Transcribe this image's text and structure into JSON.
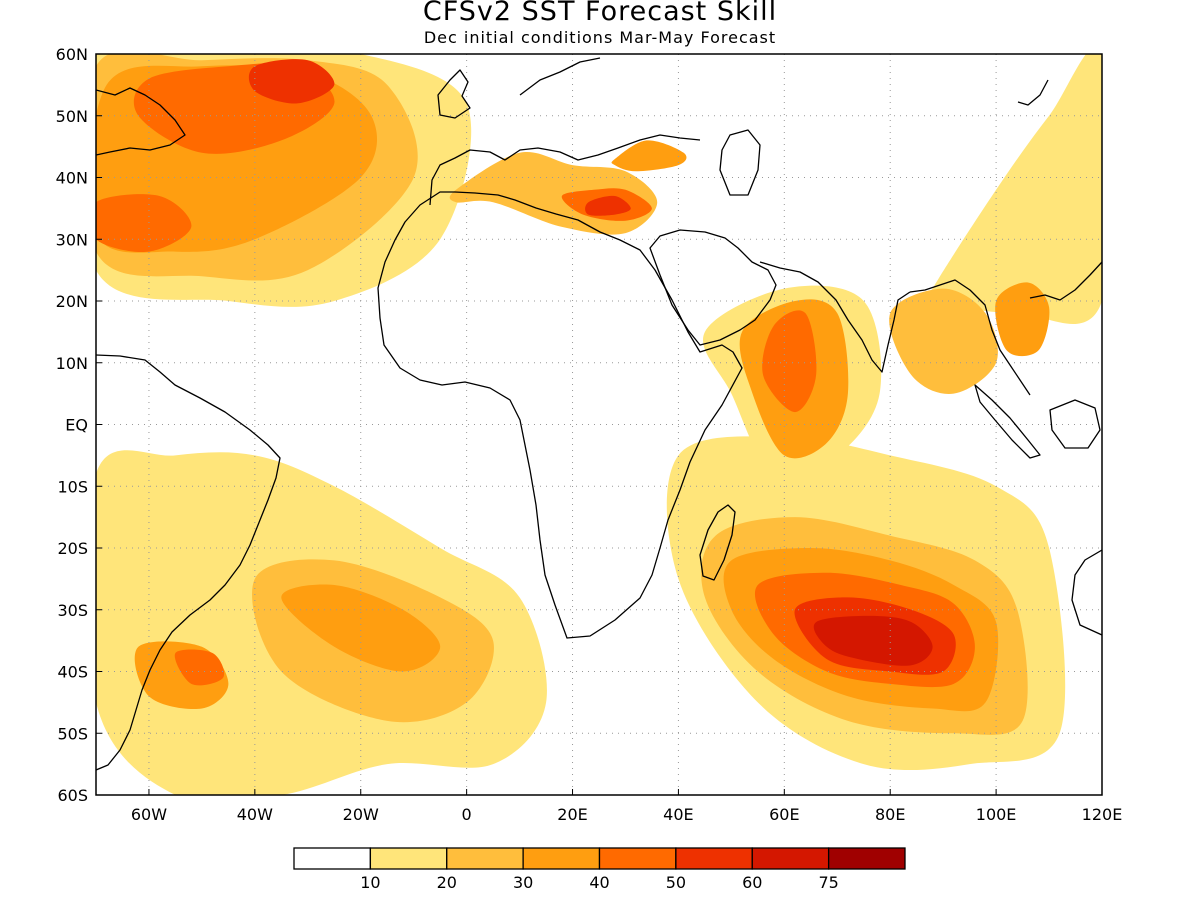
{
  "title": "CFSv2 SST Forecast Skill",
  "subtitle": "Dec initial conditions  Mar-May Forecast",
  "map": {
    "lon_range": [
      -70,
      120
    ],
    "lat_range": [
      -60,
      60
    ],
    "lat_ticks": [
      {
        "value": 60,
        "label": "60N"
      },
      {
        "value": 50,
        "label": "50N"
      },
      {
        "value": 40,
        "label": "40N"
      },
      {
        "value": 30,
        "label": "30N"
      },
      {
        "value": 20,
        "label": "20N"
      },
      {
        "value": 10,
        "label": "10N"
      },
      {
        "value": 0,
        "label": "EQ"
      },
      {
        "value": -10,
        "label": "10S"
      },
      {
        "value": -20,
        "label": "20S"
      },
      {
        "value": -30,
        "label": "30S"
      },
      {
        "value": -40,
        "label": "40S"
      },
      {
        "value": -50,
        "label": "50S"
      },
      {
        "value": -60,
        "label": "60S"
      }
    ],
    "lon_ticks": [
      {
        "value": -60,
        "label": "60W"
      },
      {
        "value": -40,
        "label": "40W"
      },
      {
        "value": -20,
        "label": "20W"
      },
      {
        "value": 0,
        "label": "0"
      },
      {
        "value": 20,
        "label": "20E"
      },
      {
        "value": 40,
        "label": "40E"
      },
      {
        "value": 60,
        "label": "60E"
      },
      {
        "value": 80,
        "label": "80E"
      },
      {
        "value": 100,
        "label": "100E"
      },
      {
        "value": 120,
        "label": "120E"
      }
    ],
    "grid": true,
    "grid_style": "dotted"
  },
  "colorbar": {
    "colors": [
      "#ffffff",
      "#ffe57a",
      "#ffbe3c",
      "#ff9e10",
      "#ff6a00",
      "#ee3100",
      "#d41700",
      "#a00000"
    ],
    "labels": [
      "10",
      "20",
      "30",
      "40",
      "50",
      "60",
      "75"
    ]
  },
  "skill_regions": [
    {
      "name": "north-atlantic",
      "level": 1,
      "lon": [
        -70,
        -40,
        -20,
        0,
        -5,
        -25,
        -45,
        -70
      ],
      "lat": [
        60,
        60,
        60,
        52,
        30,
        20,
        20,
        25
      ]
    },
    {
      "name": "north-atlantic",
      "level": 2,
      "lon": [
        -70,
        -50,
        -30,
        -15,
        -10,
        -30,
        -50,
        -70
      ],
      "lat": [
        58,
        59,
        59,
        55,
        40,
        25,
        24,
        28
      ]
    },
    {
      "name": "north-atlantic",
      "level": 3,
      "lon": [
        -68,
        -50,
        -30,
        -18,
        -20,
        -40,
        -55,
        -70
      ],
      "lat": [
        55,
        58,
        57,
        50,
        40,
        30,
        28,
        31
      ]
    },
    {
      "name": "north-atlantic",
      "level": 4,
      "lon": [
        -60,
        -45,
        -32,
        -25,
        -35,
        -50,
        -62
      ],
      "lat": [
        56,
        58,
        58,
        52,
        46,
        44,
        50
      ]
    },
    {
      "name": "north-atlantic",
      "level": 5,
      "lon": [
        -40,
        -30,
        -25,
        -32,
        -40
      ],
      "lat": [
        58,
        59,
        55,
        52,
        54
      ]
    },
    {
      "name": "north-atlantic-west",
      "level": 4,
      "lon": [
        -70,
        -58,
        -52,
        -60,
        -70
      ],
      "lat": [
        36,
        37,
        32,
        28,
        30
      ]
    },
    {
      "name": "mediterranean",
      "level": 2,
      "lon": [
        -2,
        10,
        20,
        30,
        36,
        30,
        18,
        5,
        -2
      ],
      "lat": [
        38,
        44,
        42,
        41,
        36,
        31,
        32,
        36,
        36
      ]
    },
    {
      "name": "mediterranean",
      "level": 4,
      "lon": [
        18,
        24,
        30,
        35,
        30,
        22
      ],
      "lat": [
        37,
        38,
        38,
        35,
        33,
        34
      ]
    },
    {
      "name": "mediterranean",
      "level": 5,
      "lon": [
        23,
        28,
        31,
        28,
        23
      ],
      "lat": [
        36,
        37,
        35,
        34,
        34
      ]
    },
    {
      "name": "black-sea",
      "level": 3,
      "lon": [
        28,
        34,
        41,
        40,
        32,
        28
      ],
      "lat": [
        43,
        46,
        44,
        42,
        41,
        42
      ]
    },
    {
      "name": "west-pacific",
      "level": 1,
      "lon": [
        88,
        100,
        110,
        120,
        120,
        104,
        88
      ],
      "lat": [
        22,
        38,
        50,
        60,
        20,
        18,
        20
      ]
    },
    {
      "name": "arabian-sea",
      "level": 1,
      "lon": [
        45,
        60,
        75,
        78,
        70,
        58,
        50
      ],
      "lat": [
        15,
        22,
        20,
        5,
        -5,
        -8,
        5
      ]
    },
    {
      "name": "arabian-sea",
      "level": 3,
      "lon": [
        52,
        62,
        70,
        72,
        68,
        60,
        54
      ],
      "lat": [
        15,
        20,
        18,
        5,
        -3,
        -5,
        5
      ]
    },
    {
      "name": "arabian-sea",
      "level": 4,
      "lon": [
        58,
        64,
        66,
        62,
        56
      ],
      "lat": [
        16,
        18,
        8,
        2,
        8
      ]
    },
    {
      "name": "bay-of-bengal",
      "level": 2,
      "lon": [
        80,
        90,
        98,
        100,
        92,
        84
      ],
      "lat": [
        18,
        22,
        18,
        10,
        5,
        8
      ]
    },
    {
      "name": "south-china-sea",
      "level": 3,
      "lon": [
        100,
        106,
        110,
        108,
        102
      ],
      "lat": [
        20,
        23,
        19,
        12,
        12
      ]
    },
    {
      "name": "south-indian",
      "level": 1,
      "lon": [
        40,
        60,
        80,
        100,
        110,
        112,
        95,
        75,
        55,
        40
      ],
      "lat": [
        -5,
        -2,
        -5,
        -10,
        -20,
        -50,
        -55,
        -55,
        -45,
        -25
      ]
    },
    {
      "name": "south-indian",
      "level": 2,
      "lon": [
        47,
        62,
        80,
        96,
        104,
        105,
        92,
        72,
        55,
        45
      ],
      "lat": [
        -18,
        -15,
        -18,
        -22,
        -30,
        -48,
        -50,
        -48,
        -40,
        -28
      ]
    },
    {
      "name": "south-indian",
      "level": 3,
      "lon": [
        50,
        65,
        80,
        92,
        100,
        98,
        88,
        72,
        58,
        50
      ],
      "lat": [
        -22,
        -20,
        -22,
        -26,
        -32,
        -45,
        -46,
        -44,
        -38,
        -30
      ]
    },
    {
      "name": "south-indian",
      "level": 4,
      "lon": [
        55,
        68,
        82,
        92,
        96,
        92,
        80,
        68,
        58
      ],
      "lat": [
        -26,
        -24,
        -26,
        -29,
        -36,
        -42,
        -42,
        -40,
        -34
      ]
    },
    {
      "name": "south-indian",
      "level": 5,
      "lon": [
        62,
        72,
        84,
        92,
        90,
        80,
        68
      ],
      "lat": [
        -30,
        -28,
        -30,
        -34,
        -40,
        -40,
        -38
      ]
    },
    {
      "name": "south-indian",
      "level": 6,
      "lon": [
        66,
        76,
        84,
        88,
        84,
        74,
        68
      ],
      "lat": [
        -32,
        -31,
        -32,
        -36,
        -39,
        -38,
        -36
      ]
    },
    {
      "name": "south-atlantic",
      "level": 1,
      "lon": [
        -70,
        -55,
        -40,
        -25,
        -5,
        10,
        15,
        5,
        -15,
        -35,
        -55,
        -70
      ],
      "lat": [
        -8,
        -5,
        -5,
        -10,
        -20,
        -28,
        -45,
        -55,
        -55,
        -60,
        -60,
        -45
      ]
    },
    {
      "name": "south-atlantic",
      "level": 2,
      "lon": [
        -40,
        -25,
        -5,
        5,
        0,
        -15,
        -35
      ],
      "lat": [
        -25,
        -22,
        -28,
        -35,
        -45,
        -48,
        -40
      ]
    },
    {
      "name": "south-atlantic",
      "level": 3,
      "lon": [
        -35,
        -25,
        -12,
        -5,
        -12,
        -25
      ],
      "lat": [
        -28,
        -26,
        -30,
        -36,
        -40,
        -36
      ]
    },
    {
      "name": "south-atlantic-west",
      "level": 3,
      "lon": [
        -62,
        -50,
        -45,
        -50,
        -60
      ],
      "lat": [
        -36,
        -36,
        -42,
        -46,
        -44
      ]
    },
    {
      "name": "south-atlantic-west",
      "level": 4,
      "lon": [
        -55,
        -48,
        -46,
        -52
      ],
      "lat": [
        -37,
        -37,
        -41,
        -42
      ]
    }
  ]
}
